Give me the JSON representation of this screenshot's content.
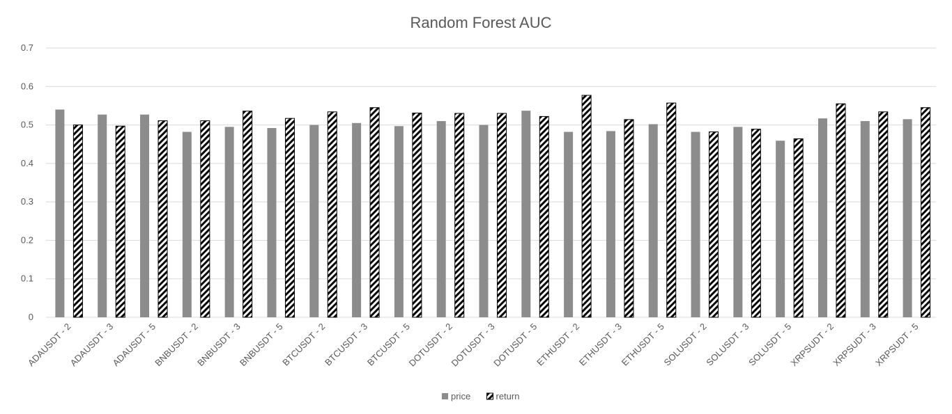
{
  "chart_data": {
    "type": "bar",
    "title": "Random Forest AUC",
    "xlabel": "",
    "ylabel": "",
    "ylim": [
      0,
      0.7
    ],
    "yticks": [
      "0",
      "0.1",
      "0.2",
      "0.3",
      "0.4",
      "0.5",
      "0.6",
      "0.7"
    ],
    "grid": true,
    "legend_position": "bottom",
    "categories": [
      "ADAUSDT - 2",
      "ADAUSDT - 3",
      "ADAUSDT - 5",
      "BNBUSDT - 2",
      "BNBUSDT - 3",
      "BNBUSDT - 5",
      "BTCUSDT - 2",
      "BTCUSDT - 3",
      "BTCUSDT - 5",
      "DOTUSDT - 2",
      "DOTUSDT - 3",
      "DOTUSDT - 5",
      "ETHUSDT - 2",
      "ETHUSDT - 3",
      "ETHUSDT - 5",
      "SOLUSDT - 2",
      "SOLUSDT - 3",
      "SOLUSDT - 5",
      "XRPSUDT - 2",
      "XRPSUDT - 3",
      "XRPSUDT - 5"
    ],
    "series": [
      {
        "name": "price",
        "color": "#8c8c8c",
        "pattern": "solid",
        "values": [
          0.54,
          0.527,
          0.527,
          0.482,
          0.495,
          0.492,
          0.5,
          0.505,
          0.497,
          0.51,
          0.5,
          0.537,
          0.482,
          0.484,
          0.502,
          0.482,
          0.495,
          0.459,
          0.517,
          0.51,
          0.515
        ]
      },
      {
        "name": "return",
        "color": "#000000",
        "pattern": "diagonal-stripes",
        "values": [
          0.5,
          0.497,
          0.511,
          0.511,
          0.536,
          0.517,
          0.534,
          0.545,
          0.531,
          0.53,
          0.53,
          0.522,
          0.577,
          0.514,
          0.557,
          0.482,
          0.489,
          0.464,
          0.555,
          0.534,
          0.545
        ]
      }
    ]
  }
}
